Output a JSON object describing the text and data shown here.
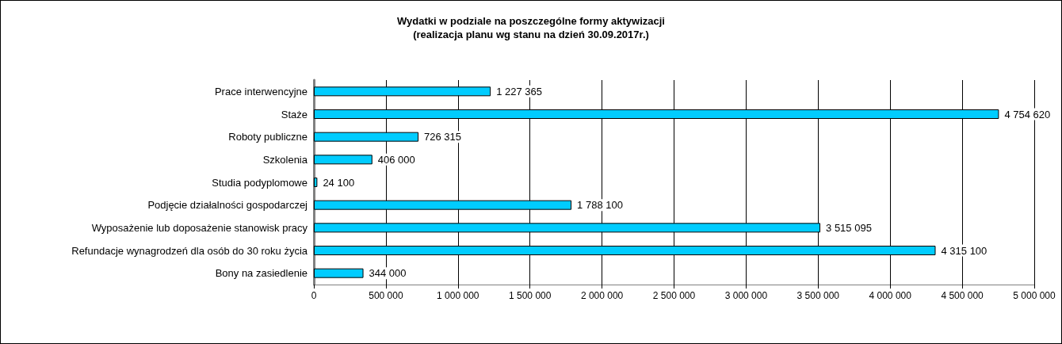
{
  "chart_data": {
    "type": "bar",
    "orientation": "horizontal",
    "title": "Wydatki w podziale na poszczególne formy aktywizacji",
    "subtitle": "(realizacja planu wg stanu na dzień 30.09.2017r.)",
    "categories": [
      "Prace interwencyjne",
      "Staże",
      "Roboty publiczne",
      "Szkolenia",
      "Studia podyplomowe",
      "Podjęcie działalności gospodarczej",
      "Wyposażenie lub doposażenie stanowisk pracy",
      "Refundacje wynagrodzeń dla osób do 30 roku życia",
      "Bony na zasiedlenie"
    ],
    "values": [
      1227365,
      4754620,
      726315,
      406000,
      24100,
      1788100,
      3515095,
      4315100,
      344000
    ],
    "value_labels": [
      "1 227 365",
      "4 754 620",
      "726 315",
      "406 000",
      "24 100",
      "1 788 100",
      "3 515 095",
      "4 315 100",
      "344 000"
    ],
    "color": "#00ccff",
    "xlim": [
      0,
      5000000
    ],
    "xticks": [
      0,
      {
        "value": 500000,
        "label": "500 000"
      },
      {
        "value": 1000000,
        "label": "1 000 000"
      },
      {
        "value": 1500000,
        "label": "1 500 000"
      },
      {
        "value": 2000000,
        "label": "2 000 000"
      },
      {
        "value": 2500000,
        "label": "2 500 000"
      },
      {
        "value": 3000000,
        "label": "3 000 000"
      },
      {
        "value": 3500000,
        "label": "3 500 000"
      },
      {
        "value": 4000000,
        "label": "4 000 000"
      },
      {
        "value": 4500000,
        "label": "4 500 000"
      },
      {
        "value": 5000000,
        "label": "5 000 000"
      }
    ],
    "grid": "x"
  }
}
